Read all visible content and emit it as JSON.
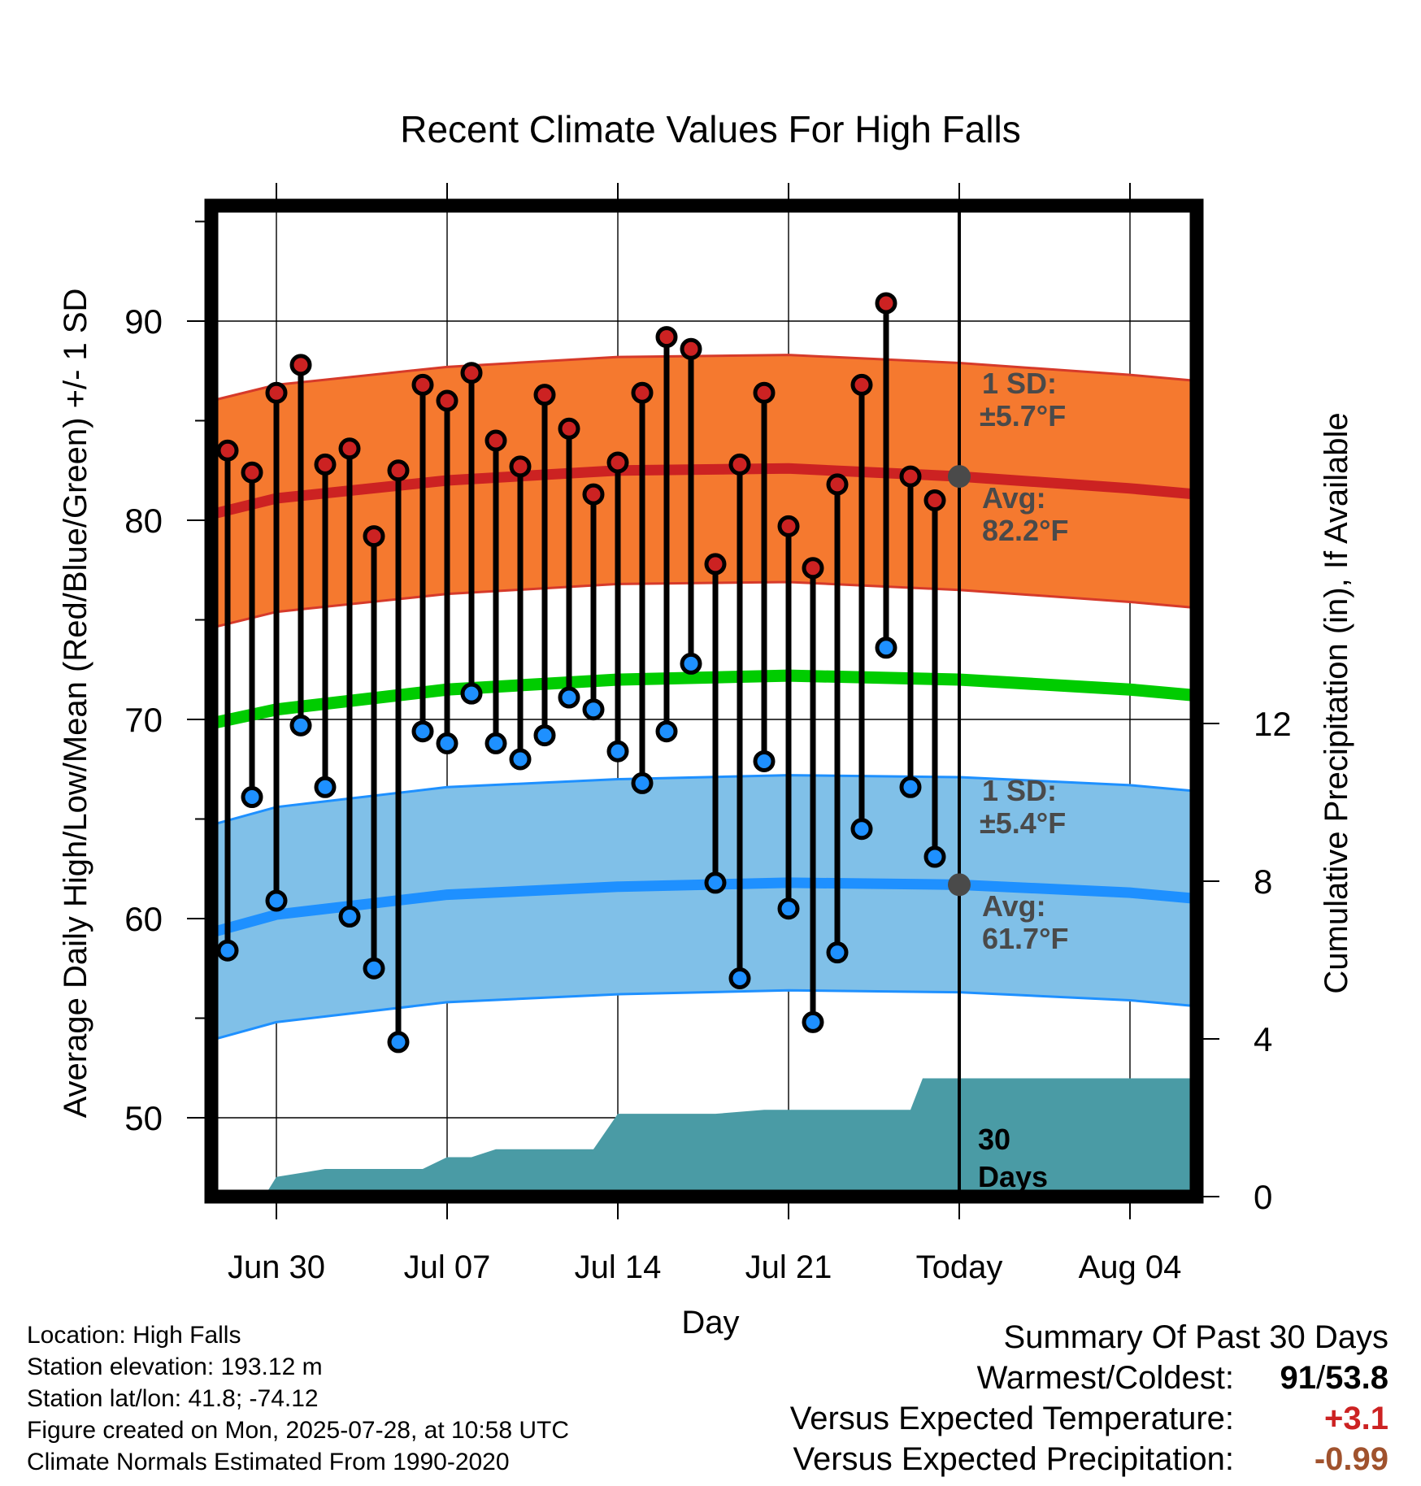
{
  "chart_data": {
    "type": "line",
    "title": "Recent Climate Values For High Falls",
    "xlabel": "Day",
    "ylabel": "Average Daily High/Low/Mean (Red/Blue/Green) +/- 1 SD",
    "y2label": "Cumulative Precipitation (in), If Available",
    "x_range_days": [
      -32.5,
      10.5
    ],
    "ylim": [
      46.2,
      97
    ],
    "y2lim": [
      0,
      27
    ],
    "x_ticks": [
      {
        "day": -28,
        "label": "Jun 30"
      },
      {
        "day": -21,
        "label": "Jul 07"
      },
      {
        "day": -14,
        "label": "Jul 14"
      },
      {
        "day": -7,
        "label": "Jul 21"
      },
      {
        "day": 0,
        "label": "Today"
      },
      {
        "day": 7,
        "label": "Aug 04"
      }
    ],
    "y_ticks": [
      50,
      60,
      70,
      80,
      90
    ],
    "y2_ticks": [
      0,
      4,
      8,
      12
    ],
    "grid": true,
    "today_day": 0,
    "series": [
      {
        "name": "High",
        "color": "#cc2222",
        "days": [
          -30,
          -29,
          -28,
          -27,
          -26,
          -25,
          -24,
          -23,
          -22,
          -21,
          -20,
          -19,
          -18,
          -17,
          -16,
          -15,
          -14,
          -13,
          -12,
          -11,
          -10,
          -9,
          -8,
          -7,
          -6,
          -5,
          -4,
          -3,
          -2,
          -1
        ],
        "values": [
          83.5,
          82.4,
          86.4,
          87.8,
          82.8,
          83.6,
          79.2,
          82.5,
          86.8,
          86.0,
          87.4,
          84.0,
          82.7,
          86.3,
          84.6,
          81.3,
          82.9,
          86.4,
          89.2,
          88.6,
          77.8,
          82.8,
          86.4,
          79.7,
          77.6,
          81.8,
          86.8,
          90.9,
          82.2,
          81.0
        ]
      },
      {
        "name": "Low",
        "color": "#1e90ff",
        "days": [
          -30,
          -29,
          -28,
          -27,
          -26,
          -25,
          -24,
          -23,
          -22,
          -21,
          -20,
          -19,
          -18,
          -17,
          -16,
          -15,
          -14,
          -13,
          -12,
          -11,
          -10,
          -9,
          -8,
          -7,
          -6,
          -5,
          -4,
          -3,
          -2,
          -1
        ],
        "values": [
          58.4,
          66.1,
          60.9,
          69.7,
          66.6,
          60.1,
          57.5,
          53.8,
          69.4,
          68.8,
          71.3,
          68.8,
          68.0,
          69.2,
          71.1,
          70.5,
          68.4,
          66.8,
          69.4,
          72.8,
          61.8,
          57.0,
          67.9,
          60.5,
          54.8,
          58.3,
          64.5,
          73.6,
          66.6,
          63.1
        ]
      },
      {
        "name": "Normal High",
        "color": "#cc2222",
        "x": [
          -32.5,
          -28,
          -21,
          -14,
          -7,
          0,
          7,
          10.5
        ],
        "values": [
          80.3,
          81.1,
          82.0,
          82.5,
          82.6,
          82.2,
          81.6,
          81.3
        ]
      },
      {
        "name": "Normal Mean",
        "color": "#00cc00",
        "x": [
          -32.5,
          -28,
          -21,
          -14,
          -7,
          0,
          7,
          10.5
        ],
        "values": [
          69.8,
          70.5,
          71.5,
          72.0,
          72.2,
          72.0,
          71.5,
          71.2
        ]
      },
      {
        "name": "Normal Low",
        "color": "#1e90ff",
        "x": [
          -32.5,
          -28,
          -21,
          -14,
          -7,
          0,
          7,
          10.5
        ],
        "values": [
          59.3,
          60.2,
          61.2,
          61.6,
          61.8,
          61.7,
          61.3,
          61.0
        ]
      },
      {
        "name": "Cumulative Precipitation",
        "color": "#4a9ba5",
        "steps": [
          [
            -28.5,
            0
          ],
          [
            -28,
            0.5
          ],
          [
            -26,
            0.7
          ],
          [
            -22,
            0.7
          ],
          [
            -21,
            1.0
          ],
          [
            -20,
            1.0
          ],
          [
            -19,
            1.2
          ],
          [
            -15,
            1.2
          ],
          [
            -14,
            2.1
          ],
          [
            -10,
            2.1
          ],
          [
            -8,
            2.2
          ],
          [
            -2,
            2.2
          ],
          [
            -1.5,
            3.0
          ],
          [
            10.5,
            3.0
          ]
        ]
      }
    ],
    "annotations": {
      "high_sd": {
        "line1": "1 SD:",
        "line2": "±5.7°F"
      },
      "high_avg": {
        "line1": "Avg:",
        "line2": "82.2°F",
        "value": 82.2
      },
      "low_sd": {
        "line1": "1 SD:",
        "line2": "±5.4°F"
      },
      "low_avg": {
        "line1": "Avg:",
        "line2": "61.7°F",
        "value": 61.7
      },
      "days": {
        "line1": "30",
        "line2": "Days"
      }
    },
    "sd_high": 5.7,
    "sd_low": 5.4
  },
  "info": {
    "location": "Location: High Falls",
    "elevation": "Station elevation: 193.12 m",
    "latlon": "Station lat/lon: 41.8; -74.12",
    "created": "Figure created on Mon, 2025-07-28, at 10:58 UTC",
    "normals": "Climate Normals Estimated From 1990-2020"
  },
  "summary": {
    "heading": "Summary Of Past 30 Days",
    "warmest_label": "Warmest/Coldest:",
    "warmest_value": "91",
    "coldest_value": "53.8",
    "temp_label": "Versus Expected Temperature:",
    "temp_value": "+3.1",
    "temp_color": "#cc2222",
    "precip_label": "Versus Expected Precipitation:",
    "precip_value": "-0.99",
    "precip_color": "#a0522d"
  },
  "colors": {
    "high_band": "#f5792f",
    "low_band": "#80c0e8",
    "precip": "#4a9ba5",
    "high_marker": "#cc2222",
    "low_marker": "#1e90ff",
    "mean_line": "#00cc00"
  }
}
